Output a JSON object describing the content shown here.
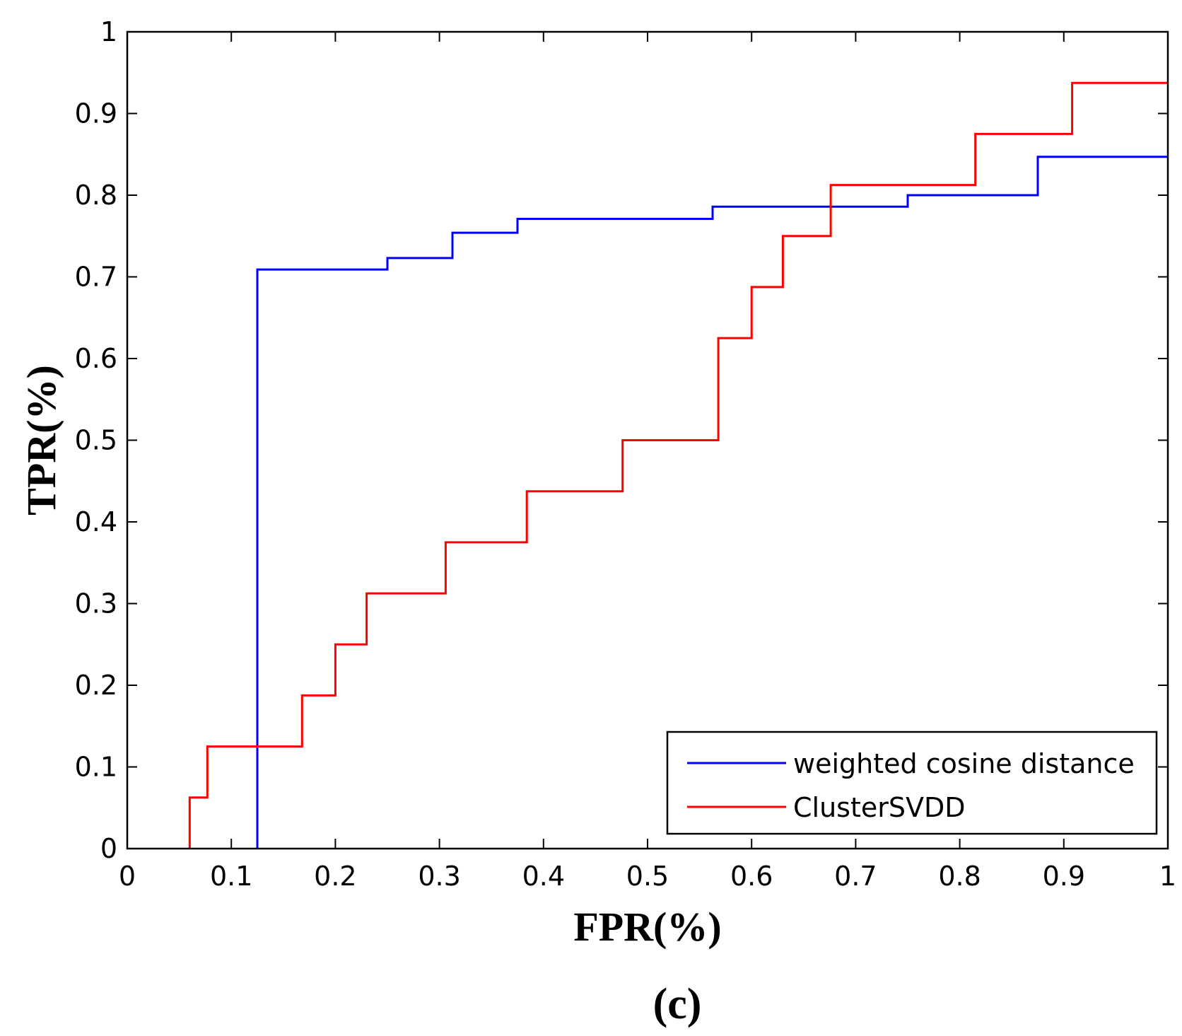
{
  "chart_data": {
    "type": "line",
    "title": "",
    "xlabel": "FPR(%)",
    "ylabel": "TPR(%)",
    "xlim": [
      0,
      1
    ],
    "ylim": [
      0,
      1
    ],
    "xticks": [
      "0",
      "0.1",
      "0.2",
      "0.3",
      "0.4",
      "0.5",
      "0.6",
      "0.7",
      "0.8",
      "0.9",
      "1"
    ],
    "yticks": [
      "0",
      "0.1",
      "0.2",
      "0.3",
      "0.4",
      "0.5",
      "0.6",
      "0.7",
      "0.8",
      "0.9",
      "1"
    ],
    "grid": false,
    "legend_position": "bottom-right",
    "panel_label": "(c)",
    "series": [
      {
        "name": "weighted cosine distance",
        "color": "#0000ff",
        "step": true,
        "points": [
          [
            0.125,
            0
          ],
          [
            0.125,
            0.709
          ],
          [
            0.25,
            0.709
          ],
          [
            0.25,
            0.723
          ],
          [
            0.3125,
            0.723
          ],
          [
            0.3125,
            0.754
          ],
          [
            0.375,
            0.754
          ],
          [
            0.375,
            0.771
          ],
          [
            0.5625,
            0.771
          ],
          [
            0.5625,
            0.786
          ],
          [
            0.75,
            0.786
          ],
          [
            0.75,
            0.8
          ],
          [
            0.875,
            0.8
          ],
          [
            0.875,
            0.847
          ],
          [
            1.0,
            0.847
          ]
        ]
      },
      {
        "name": "ClusterSVDD",
        "color": "#ff0000",
        "step": true,
        "points": [
          [
            0.06,
            0
          ],
          [
            0.06,
            0.0625
          ],
          [
            0.077,
            0.0625
          ],
          [
            0.077,
            0.125
          ],
          [
            0.168,
            0.125
          ],
          [
            0.168,
            0.1875
          ],
          [
            0.2,
            0.1875
          ],
          [
            0.2,
            0.25
          ],
          [
            0.23,
            0.25
          ],
          [
            0.23,
            0.3125
          ],
          [
            0.306,
            0.3125
          ],
          [
            0.306,
            0.375
          ],
          [
            0.384,
            0.375
          ],
          [
            0.384,
            0.4375
          ],
          [
            0.476,
            0.4375
          ],
          [
            0.476,
            0.5
          ],
          [
            0.568,
            0.5
          ],
          [
            0.568,
            0.625
          ],
          [
            0.6,
            0.625
          ],
          [
            0.6,
            0.6875
          ],
          [
            0.63,
            0.6875
          ],
          [
            0.63,
            0.75
          ],
          [
            0.676,
            0.75
          ],
          [
            0.676,
            0.8125
          ],
          [
            0.815,
            0.8125
          ],
          [
            0.815,
            0.875
          ],
          [
            0.908,
            0.875
          ],
          [
            0.908,
            0.9375
          ],
          [
            1.0,
            0.9375
          ]
        ]
      }
    ]
  }
}
